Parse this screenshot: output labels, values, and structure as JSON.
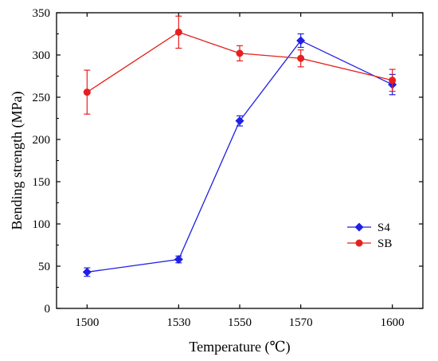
{
  "chart_data": {
    "type": "line",
    "xlabel": "Temperature (℃)",
    "ylabel": "Bending strength (MPa)",
    "xlim": [
      1490,
      1610
    ],
    "ylim": [
      0,
      350
    ],
    "x_ticks": [
      1500,
      1530,
      1550,
      1570,
      1600
    ],
    "y_ticks": [
      0,
      50,
      100,
      150,
      200,
      250,
      300,
      350
    ],
    "grid": false,
    "legend_position": "lower-right",
    "series": [
      {
        "name": "S4",
        "color": "#1f1fe6",
        "marker": "diamond",
        "x": [
          1500,
          1530,
          1550,
          1570,
          1600
        ],
        "y": [
          43,
          58,
          222,
          317,
          265
        ],
        "error": [
          5,
          4,
          6,
          8,
          12
        ]
      },
      {
        "name": "SB",
        "color": "#e61f1f",
        "marker": "circle",
        "x": [
          1500,
          1530,
          1550,
          1570,
          1600
        ],
        "y": [
          256,
          327,
          302,
          296,
          270
        ],
        "error": [
          26,
          19,
          9,
          10,
          13
        ]
      }
    ]
  }
}
